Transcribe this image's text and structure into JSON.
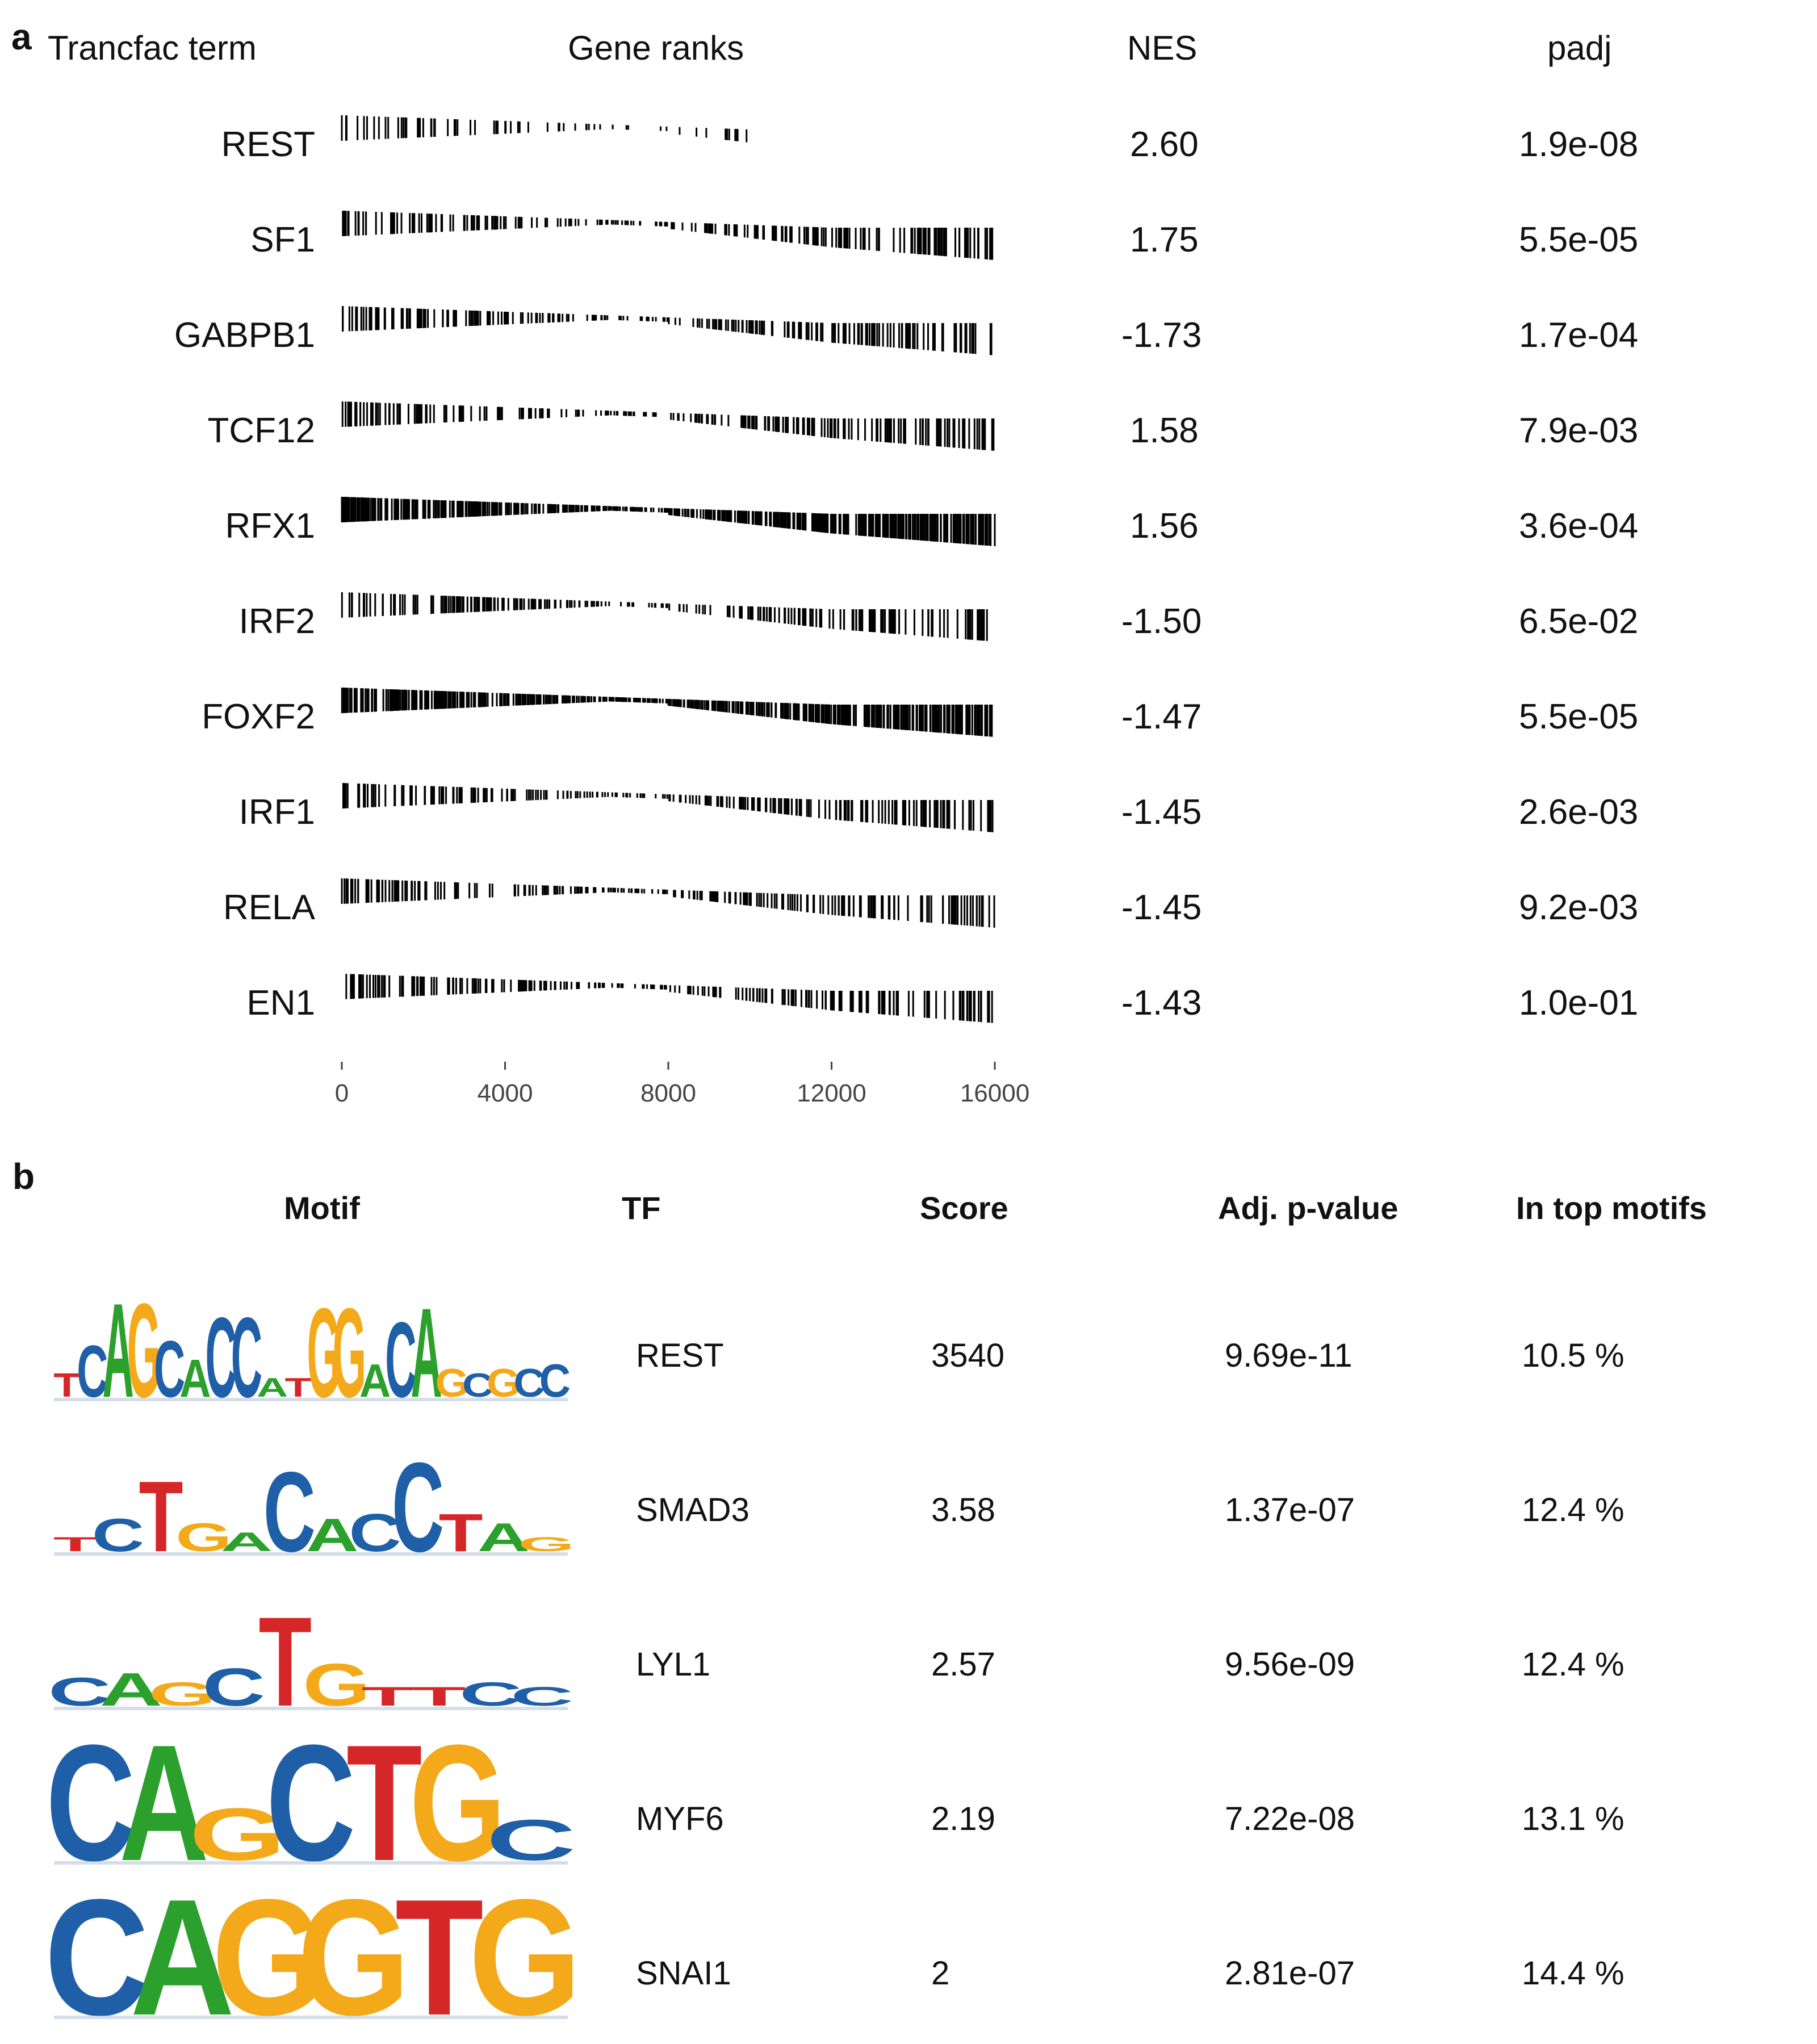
{
  "panel_a": {
    "letter": "a",
    "headers": {
      "term": "Trancfac term",
      "ranks": "Gene ranks",
      "nes": "NES",
      "padj": "padj"
    },
    "rows": [
      {
        "term": "REST",
        "nes": "2.60",
        "padj": "1.9e-08"
      },
      {
        "term": "SF1",
        "nes": "1.75",
        "padj": "5.5e-05"
      },
      {
        "term": "GABPB1",
        "nes": "-1.73",
        "padj": "1.7e-04"
      },
      {
        "term": "TCF12",
        "nes": "1.58",
        "padj": "7.9e-03"
      },
      {
        "term": "RFX1",
        "nes": "1.56",
        "padj": "3.6e-04"
      },
      {
        "term": "IRF2",
        "nes": "-1.50",
        "padj": "6.5e-02"
      },
      {
        "term": "FOXF2",
        "nes": "-1.47",
        "padj": "5.5e-05"
      },
      {
        "term": "IRF1",
        "nes": "-1.45",
        "padj": "2.6e-03"
      },
      {
        "term": "RELA",
        "nes": "-1.45",
        "padj": "9.2e-03"
      },
      {
        "term": "EN1",
        "nes": "-1.43",
        "padj": "1.0e-01"
      }
    ]
  },
  "panel_b": {
    "letter": "b",
    "headers": {
      "motif": "Motif",
      "tf": "TF",
      "score": "Score",
      "adjp": "Adj. p-value",
      "top": "In top motifs"
    },
    "rows": [
      {
        "tf": "REST",
        "score": "3540",
        "adjp": "9.69e-11",
        "top": "10.5 %",
        "logo": "TCAGCACCATGGACAGCGCC"
      },
      {
        "tf": "SMAD3",
        "score": "3.58",
        "adjp": "1.37e-07",
        "top": "12.4 %",
        "logo": "TCTGACACCTAG"
      },
      {
        "tf": "LYL1",
        "score": "2.57",
        "adjp": "9.56e-09",
        "top": "12.4 %",
        "logo": "CAGCTGTTCC"
      },
      {
        "tf": "MYF6",
        "score": "2.19",
        "adjp": "7.22e-08",
        "top": "13.1 %",
        "logo": "CAGCTGC"
      },
      {
        "tf": "SNAI1",
        "score": "2",
        "adjp": "2.81e-07",
        "top": "14.4 %",
        "logo": "CAGGTG"
      }
    ]
  },
  "colors": {
    "A": "#2ca02c",
    "C": "#1f5fa8",
    "G": "#f4a91a",
    "T": "#d62728",
    "ink": "#000000"
  },
  "chart_data": {
    "type": "barcode",
    "xlabel": "",
    "ylabel": "",
    "xlim": [
      0,
      16000
    ],
    "x_ticks": [
      0,
      4000,
      8000,
      12000,
      16000
    ],
    "x_tick_labels": [
      "0",
      "4000",
      "8000",
      "12000",
      "16000"
    ],
    "series": [
      {
        "name": "REST",
        "nes": 2.6
      },
      {
        "name": "SF1",
        "nes": 1.75
      },
      {
        "name": "GABPB1",
        "nes": -1.73
      },
      {
        "name": "TCF12",
        "nes": 1.58
      },
      {
        "name": "RFX1",
        "nes": 1.56
      },
      {
        "name": "IRF2",
        "nes": -1.5
      },
      {
        "name": "FOXF2",
        "nes": -1.47
      },
      {
        "name": "IRF1",
        "nes": -1.45
      },
      {
        "name": "RELA",
        "nes": -1.45
      },
      {
        "name": "EN1",
        "nes": -1.43
      }
    ]
  }
}
